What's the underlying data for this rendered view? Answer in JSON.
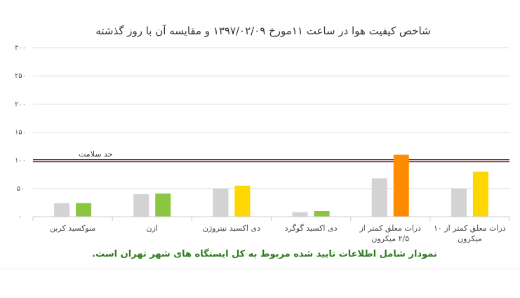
{
  "chart_data": {
    "type": "bar",
    "title": "شاخص کیفیت هوا در ساعت ۱۱مورخ ۱۳۹۷/۰۲/۰۹ و مقایسه آن با روز گذشته",
    "ylim": [
      0,
      300
    ],
    "yticks": [
      "۳۰۰",
      "۲۵۰",
      "۲۰۰",
      "۱۵۰",
      "۱۰۰",
      "۵۰",
      "۰"
    ],
    "ytick_values": [
      300,
      250,
      200,
      150,
      100,
      50,
      0
    ],
    "categories": [
      [
        "منوکسید کربن"
      ],
      [
        "ازن"
      ],
      [
        "دی اکسید نیتروژن"
      ],
      [
        "دی اکسید گوگرد"
      ],
      [
        "ذرات معلق کمتر از",
        "۲/۵ میکرون"
      ],
      [
        "ذرات معلق کمتر از ۱۰",
        "میکرون"
      ]
    ],
    "series": [
      {
        "values": [
          24,
          40,
          50,
          8,
          68,
          50
        ],
        "colors": [
          "#d3d3d3",
          "#d3d3d3",
          "#d3d3d3",
          "#d3d3d3",
          "#d3d3d3",
          "#d3d3d3"
        ]
      },
      {
        "values": [
          24,
          41,
          55,
          10,
          110,
          80
        ],
        "colors": [
          "#8ac63f",
          "#8ac63f",
          "#ffd700",
          "#8ac63f",
          "#ff8c00",
          "#ffd700"
        ]
      }
    ],
    "reference_line": {
      "value": 100,
      "label": "حد سلامت",
      "color": "#6b0f0f"
    },
    "grid": true,
    "footnote": "نمودار شامل اطلاعات تایید شده مربوط به کل ایستگاه های شهر تهران است.",
    "footnote_color": "#2e7d1e"
  }
}
